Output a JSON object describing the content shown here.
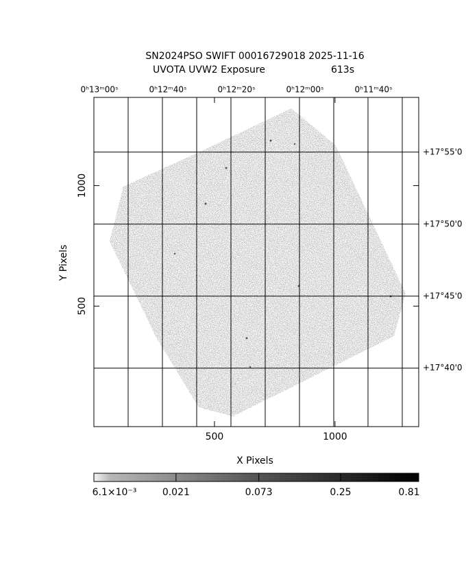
{
  "chart_data": {
    "type": "image",
    "title": "SN2024PSO SWIFT 00016729018 2025-11-16",
    "subtitle": "UVOTA UVW2 Exposure",
    "exposure": "613s",
    "x_label": "X Pixels",
    "y_label": "Y Pixels",
    "xlim": [
      0,
      1347
    ],
    "xticks": [
      500,
      1000
    ],
    "ylim": [
      0,
      1366
    ],
    "yticks": [
      500,
      1000
    ],
    "ralim": [
      780,
      685.2
    ],
    "ra_ticks": [
      {
        "value": 780,
        "label": "0ʰ13ᵐ00ˢ"
      },
      {
        "value": 760,
        "label": "0ʰ12ᵐ40ˢ"
      },
      {
        "value": 740,
        "label": "0ʰ12ᵐ20ˢ"
      },
      {
        "value": 720,
        "label": "0ʰ12ᵐ00ˢ"
      },
      {
        "value": 700,
        "label": "0ʰ11ᵐ40ˢ"
      }
    ],
    "ra_minor": [
      770,
      750,
      730,
      710,
      690
    ],
    "declim": [
      17.599,
      17.98
    ],
    "dec_ticks": [
      {
        "value": 17.91667,
        "label": "+17°55'0"
      },
      {
        "value": 17.83333,
        "label": "+17°50'0"
      },
      {
        "value": 17.75,
        "label": "+17°45'0"
      },
      {
        "value": 17.66667,
        "label": "+17°40'0"
      }
    ],
    "grid": true,
    "image_color": "#a8a8a8",
    "colorbar": {
      "scale": "log",
      "lim": [
        0.0061,
        0.81
      ],
      "ticks": [
        {
          "value": 0.0061,
          "label": "6.1×10⁻³"
        },
        0.021,
        0.073,
        0.25,
        0.81
      ]
    }
  }
}
